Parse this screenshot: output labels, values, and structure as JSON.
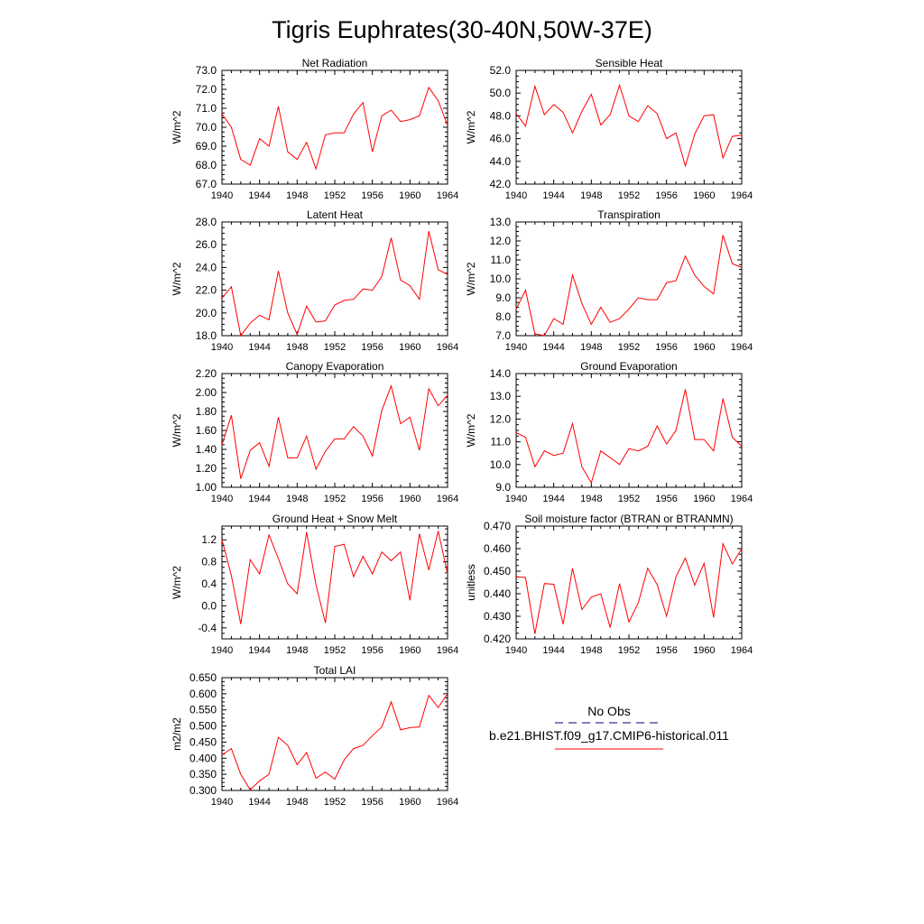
{
  "figure": {
    "title": "Tigris Euphrates(30-40N,50W-37E)"
  },
  "legend": {
    "entries": [
      {
        "label": "No Obs",
        "color": "#000080",
        "dash": true
      },
      {
        "label": "b.e21.BHIST.f09_g17.CMIP6-historical.011",
        "color": "#ff0000",
        "dash": false
      }
    ]
  },
  "line_color": "#ff0000",
  "chart_data": [
    {
      "type": "line",
      "title": "Net Radiation",
      "ylabel": "W/m^2",
      "xlim": [
        1940,
        1964
      ],
      "ylim": [
        67.0,
        73.0
      ],
      "xticks": [
        1940,
        1944,
        1948,
        1952,
        1956,
        1960,
        1964
      ],
      "yticks": [
        67.0,
        68.0,
        69.0,
        70.0,
        71.0,
        72.0,
        73.0
      ],
      "ytick_labels": [
        "67.0",
        "68.0",
        "69.0",
        "70.0",
        "71.0",
        "72.0",
        "73.0"
      ],
      "x": [
        1940,
        1941,
        1942,
        1943,
        1944,
        1945,
        1946,
        1947,
        1948,
        1949,
        1950,
        1951,
        1952,
        1953,
        1954,
        1955,
        1956,
        1957,
        1958,
        1959,
        1960,
        1961,
        1962,
        1963,
        1964
      ],
      "y": [
        70.7,
        70.0,
        68.3,
        68.0,
        69.4,
        69.0,
        71.1,
        68.7,
        68.3,
        69.2,
        67.8,
        69.6,
        69.7,
        69.7,
        70.7,
        71.3,
        68.7,
        70.6,
        70.9,
        70.3,
        70.4,
        70.6,
        72.1,
        71.4,
        70.1
      ]
    },
    {
      "type": "line",
      "title": "Sensible Heat",
      "ylabel": "W/m^2",
      "xlim": [
        1940,
        1964
      ],
      "ylim": [
        42.0,
        52.0
      ],
      "xticks": [
        1940,
        1944,
        1948,
        1952,
        1956,
        1960,
        1964
      ],
      "yticks": [
        42.0,
        44.0,
        46.0,
        48.0,
        50.0,
        52.0
      ],
      "ytick_labels": [
        "42.0",
        "44.0",
        "46.0",
        "48.0",
        "50.0",
        "52.0"
      ],
      "x": [
        1940,
        1941,
        1942,
        1943,
        1944,
        1945,
        1946,
        1947,
        1948,
        1949,
        1950,
        1951,
        1952,
        1953,
        1954,
        1955,
        1956,
        1957,
        1958,
        1959,
        1960,
        1961,
        1962,
        1963,
        1964
      ],
      "y": [
        48.2,
        47.1,
        50.6,
        48.1,
        49.0,
        48.3,
        46.5,
        48.4,
        49.9,
        47.2,
        48.1,
        50.7,
        48.0,
        47.5,
        48.9,
        48.2,
        46.0,
        46.5,
        43.6,
        46.4,
        48.0,
        48.1,
        44.3,
        46.2,
        46.3
      ]
    },
    {
      "type": "line",
      "title": "Latent Heat",
      "ylabel": "W/m^2",
      "xlim": [
        1940,
        1964
      ],
      "ylim": [
        18.0,
        28.0
      ],
      "xticks": [
        1940,
        1944,
        1948,
        1952,
        1956,
        1960,
        1964
      ],
      "yticks": [
        18.0,
        20.0,
        22.0,
        24.0,
        26.0,
        28.0
      ],
      "ytick_labels": [
        "18.0",
        "20.0",
        "22.0",
        "24.0",
        "26.0",
        "28.0"
      ],
      "x": [
        1940,
        1941,
        1942,
        1943,
        1944,
        1945,
        1946,
        1947,
        1948,
        1949,
        1950,
        1951,
        1952,
        1953,
        1954,
        1955,
        1956,
        1957,
        1958,
        1959,
        1960,
        1961,
        1962,
        1963,
        1964
      ],
      "y": [
        21.3,
        22.3,
        18.0,
        19.1,
        19.8,
        19.4,
        23.7,
        20.0,
        18.1,
        20.6,
        19.2,
        19.3,
        20.7,
        21.1,
        21.2,
        22.1,
        22.0,
        23.2,
        26.6,
        22.9,
        22.4,
        21.2,
        27.2,
        23.8,
        23.4
      ]
    },
    {
      "type": "line",
      "title": "Transpiration",
      "ylabel": "W/m^2",
      "xlim": [
        1940,
        1964
      ],
      "ylim": [
        7.0,
        13.0
      ],
      "xticks": [
        1940,
        1944,
        1948,
        1952,
        1956,
        1960,
        1964
      ],
      "yticks": [
        7.0,
        8.0,
        9.0,
        10.0,
        11.0,
        12.0,
        13.0
      ],
      "ytick_labels": [
        "7.0",
        "8.0",
        "9.0",
        "10.0",
        "11.0",
        "12.0",
        "13.0"
      ],
      "x": [
        1940,
        1941,
        1942,
        1943,
        1944,
        1945,
        1946,
        1947,
        1948,
        1949,
        1950,
        1951,
        1952,
        1953,
        1954,
        1955,
        1956,
        1957,
        1958,
        1959,
        1960,
        1961,
        1962,
        1963,
        1964
      ],
      "y": [
        8.4,
        9.4,
        7.1,
        7.0,
        7.9,
        7.6,
        10.2,
        8.7,
        7.6,
        8.5,
        7.7,
        7.9,
        8.4,
        9.0,
        8.9,
        8.9,
        9.8,
        9.9,
        11.2,
        10.2,
        9.6,
        9.2,
        12.3,
        10.8,
        10.6
      ]
    },
    {
      "type": "line",
      "title": "Canopy Evaporation",
      "ylabel": "W/m^2",
      "xlim": [
        1940,
        1964
      ],
      "ylim": [
        1.0,
        2.2
      ],
      "xticks": [
        1940,
        1944,
        1948,
        1952,
        1956,
        1960,
        1964
      ],
      "yticks": [
        1.0,
        1.2,
        1.4,
        1.6,
        1.8,
        2.0,
        2.2
      ],
      "ytick_labels": [
        "1.00",
        "1.20",
        "1.40",
        "1.60",
        "1.80",
        "2.00",
        "2.20"
      ],
      "x": [
        1940,
        1941,
        1942,
        1943,
        1944,
        1945,
        1946,
        1947,
        1948,
        1949,
        1950,
        1951,
        1952,
        1953,
        1954,
        1955,
        1956,
        1957,
        1958,
        1959,
        1960,
        1961,
        1962,
        1963,
        1964
      ],
      "y": [
        1.45,
        1.76,
        1.09,
        1.39,
        1.47,
        1.22,
        1.74,
        1.31,
        1.31,
        1.54,
        1.19,
        1.38,
        1.51,
        1.51,
        1.64,
        1.54,
        1.33,
        1.81,
        2.07,
        1.67,
        1.74,
        1.39,
        2.04,
        1.86,
        1.97
      ]
    },
    {
      "type": "line",
      "title": "Ground Evaporation",
      "ylabel": "W/m^2",
      "xlim": [
        1940,
        1964
      ],
      "ylim": [
        9.0,
        14.0
      ],
      "xticks": [
        1940,
        1944,
        1948,
        1952,
        1956,
        1960,
        1964
      ],
      "yticks": [
        9.0,
        10.0,
        11.0,
        12.0,
        13.0,
        14.0
      ],
      "ytick_labels": [
        "9.0",
        "10.0",
        "11.0",
        "12.0",
        "13.0",
        "14.0"
      ],
      "x": [
        1940,
        1941,
        1942,
        1943,
        1944,
        1945,
        1946,
        1947,
        1948,
        1949,
        1950,
        1951,
        1952,
        1953,
        1954,
        1955,
        1956,
        1957,
        1958,
        1959,
        1960,
        1961,
        1962,
        1963,
        1964
      ],
      "y": [
        11.4,
        11.2,
        9.9,
        10.6,
        10.4,
        10.5,
        11.8,
        9.9,
        9.2,
        10.6,
        10.3,
        10.0,
        10.7,
        10.6,
        10.8,
        11.7,
        10.9,
        11.5,
        13.3,
        11.1,
        11.1,
        10.6,
        12.9,
        11.2,
        10.8
      ]
    },
    {
      "type": "line",
      "title": "Ground Heat + Snow Melt",
      "ylabel": "W/m^2",
      "xlim": [
        1940,
        1964
      ],
      "ylim": [
        -0.6,
        1.45
      ],
      "xticks": [
        1940,
        1944,
        1948,
        1952,
        1956,
        1960,
        1964
      ],
      "yticks": [
        -0.4,
        0.0,
        0.4,
        0.8,
        1.2
      ],
      "ytick_labels": [
        "-0.4",
        "0.0",
        "0.4",
        "0.8",
        "1.2"
      ],
      "x": [
        1940,
        1941,
        1942,
        1943,
        1944,
        1945,
        1946,
        1947,
        1948,
        1949,
        1950,
        1951,
        1952,
        1953,
        1954,
        1955,
        1956,
        1957,
        1958,
        1959,
        1960,
        1961,
        1962,
        1963,
        1964
      ],
      "y": [
        1.2,
        0.55,
        -0.33,
        0.84,
        0.58,
        1.29,
        0.86,
        0.4,
        0.22,
        1.34,
        0.38,
        -0.31,
        1.08,
        1.12,
        0.53,
        0.9,
        0.58,
        0.98,
        0.82,
        0.98,
        0.1,
        1.31,
        0.65,
        1.36,
        0.58
      ]
    },
    {
      "type": "line",
      "title": "Soil moisture factor (BTRAN or BTRANMN)",
      "ylabel": "unitless",
      "xlim": [
        1940,
        1964
      ],
      "ylim": [
        0.42,
        0.47
      ],
      "xticks": [
        1940,
        1944,
        1948,
        1952,
        1956,
        1960,
        1964
      ],
      "yticks": [
        0.42,
        0.43,
        0.44,
        0.45,
        0.46,
        0.47
      ],
      "ytick_labels": [
        "0.420",
        "0.430",
        "0.440",
        "0.450",
        "0.460",
        "0.470"
      ],
      "x": [
        1940,
        1941,
        1942,
        1943,
        1944,
        1945,
        1946,
        1947,
        1948,
        1949,
        1950,
        1951,
        1952,
        1953,
        1954,
        1955,
        1956,
        1957,
        1958,
        1959,
        1960,
        1961,
        1962,
        1963,
        1964
      ],
      "y": [
        0.4475,
        0.4472,
        0.4222,
        0.4445,
        0.4442,
        0.4265,
        0.4513,
        0.433,
        0.4385,
        0.44,
        0.425,
        0.4445,
        0.4275,
        0.436,
        0.4513,
        0.444,
        0.43,
        0.4475,
        0.4558,
        0.4438,
        0.4535,
        0.4295,
        0.4622,
        0.4532,
        0.46
      ]
    },
    {
      "type": "line",
      "title": "Total LAI",
      "ylabel": "m2/m2",
      "xlim": [
        1940,
        1964
      ],
      "ylim": [
        0.3,
        0.65
      ],
      "xticks": [
        1940,
        1944,
        1948,
        1952,
        1956,
        1960,
        1964
      ],
      "yticks": [
        0.3,
        0.35,
        0.4,
        0.45,
        0.5,
        0.55,
        0.6,
        0.65
      ],
      "ytick_labels": [
        "0.300",
        "0.350",
        "0.400",
        "0.450",
        "0.500",
        "0.550",
        "0.600",
        "0.650"
      ],
      "x": [
        1940,
        1941,
        1942,
        1943,
        1944,
        1945,
        1946,
        1947,
        1948,
        1949,
        1950,
        1951,
        1952,
        1953,
        1954,
        1955,
        1956,
        1957,
        1958,
        1959,
        1960,
        1961,
        1962,
        1963,
        1964
      ],
      "y": [
        0.41,
        0.43,
        0.35,
        0.302,
        0.33,
        0.35,
        0.465,
        0.44,
        0.38,
        0.418,
        0.338,
        0.357,
        0.335,
        0.395,
        0.43,
        0.44,
        0.47,
        0.497,
        0.575,
        0.488,
        0.495,
        0.497,
        0.595,
        0.557,
        0.6
      ]
    }
  ]
}
